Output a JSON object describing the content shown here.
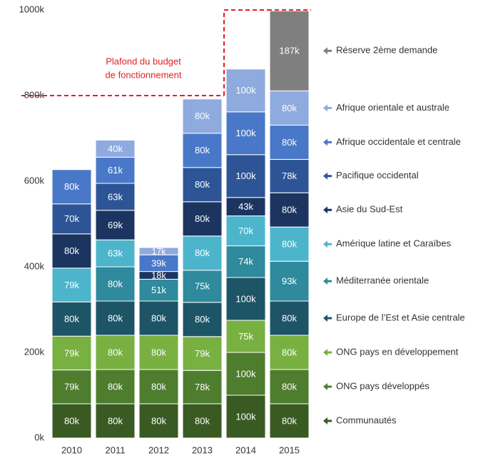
{
  "chart_data": {
    "type": "stacked_bar",
    "categories": [
      "2010",
      "2011",
      "2012",
      "2013",
      "2014",
      "2015"
    ],
    "ylim": [
      0,
      1000
    ],
    "yticks": [
      {
        "value": 0,
        "label": "0k"
      },
      {
        "value": 200,
        "label": "200k"
      },
      {
        "value": 400,
        "label": "400k"
      },
      {
        "value": 600,
        "label": "600k"
      },
      {
        "value": 800,
        "label": "800k"
      },
      {
        "value": 1000,
        "label": "1000k"
      }
    ],
    "series": [
      {
        "name": "Communautés",
        "color": "#3a5a23",
        "values": [
          80,
          80,
          80,
          80,
          100,
          80
        ],
        "value_labels": [
          "80k",
          "80k",
          "80k",
          "80k",
          "100k",
          "80k"
        ]
      },
      {
        "name": "ONG pays développés",
        "color": "#4e7d2e",
        "values": [
          79,
          80,
          80,
          78,
          100,
          80
        ],
        "value_labels": [
          "79k",
          "80k",
          "80k",
          "78k",
          "100k",
          "80k"
        ]
      },
      {
        "name": "ONG pays en développement",
        "color": "#78b042",
        "values": [
          79,
          80,
          80,
          79,
          75,
          80
        ],
        "value_labels": [
          "79k",
          "80k",
          "80k",
          "79k",
          "75k",
          "80k"
        ]
      },
      {
        "name": "Europe de l’Est et Asie centrale",
        "color": "#1d5566",
        "values": [
          80,
          80,
          80,
          80,
          100,
          80
        ],
        "value_labels": [
          "80k",
          "80k",
          "80k",
          "80k",
          "100k",
          "80k"
        ]
      },
      {
        "name": "Méditerranée orientale",
        "color": "#2e8a9c",
        "values": [
          null,
          80,
          51,
          75,
          74,
          93
        ],
        "value_labels": [
          null,
          "80k",
          "51k",
          "75k",
          "74k",
          "93k"
        ]
      },
      {
        "name": "Amérique latine et Caraïbes",
        "color": "#4cb5cc",
        "values": [
          79,
          63,
          null,
          80,
          70,
          80
        ],
        "value_labels": [
          "79k",
          "63k",
          null,
          "80k",
          "70k",
          "80k"
        ]
      },
      {
        "name": "Asie du Sud-Est",
        "color": "#1c3560",
        "values": [
          80,
          69,
          18,
          80,
          43,
          80
        ],
        "value_labels": [
          "80k",
          "69k",
          "18k",
          "80k",
          "43k",
          "80k"
        ]
      },
      {
        "name": "Pacifique occidental",
        "color": "#2d5596",
        "values": [
          70,
          63,
          null,
          80,
          100,
          78
        ],
        "value_labels": [
          "70k",
          "63k",
          null,
          "80k",
          "100k",
          "78k"
        ]
      },
      {
        "name": "Afrique occidentale et centrale",
        "color": "#4a78c8",
        "values": [
          80,
          61,
          39,
          80,
          100,
          80
        ],
        "value_labels": [
          "80k",
          "61k",
          "39k",
          "80k",
          "100k",
          "80k"
        ]
      },
      {
        "name": "Afrique orientale et australe",
        "color": "#8eaade",
        "values": [
          null,
          40,
          17,
          80,
          100,
          80
        ],
        "value_labels": [
          null,
          "40k",
          "17k",
          "80k",
          "100k",
          "80k"
        ]
      },
      {
        "name": "Réserve 2ème demande",
        "color": "#7f7f7f",
        "values": [
          null,
          null,
          null,
          null,
          null,
          187
        ],
        "value_labels": [
          null,
          null,
          null,
          null,
          null,
          "187k"
        ]
      }
    ],
    "budget_ceiling": {
      "label": [
        "Plafond du budget",
        "de fonctionnement"
      ],
      "color": "#e31e24",
      "values": [
        800,
        800,
        800,
        800,
        1000,
        1000
      ]
    }
  }
}
